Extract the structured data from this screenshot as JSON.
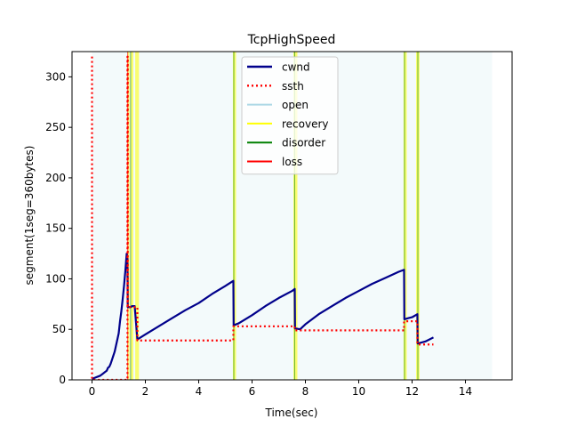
{
  "chart_data": {
    "type": "line",
    "title": "TcpHighSpeed",
    "xlabel": "Time(sec)",
    "ylabel": "segment(1seg=360bytes)",
    "xlim": [
      -0.75,
      15.75
    ],
    "ylim": [
      0,
      325
    ],
    "xticks": [
      0,
      2,
      4,
      6,
      8,
      10,
      12,
      14
    ],
    "yticks": [
      0,
      50,
      100,
      150,
      200,
      250,
      300
    ],
    "grid": false,
    "legend_position": "top-center",
    "colors": {
      "cwnd": "#00008b",
      "ssth": "#ff0000",
      "open": "#add8e6",
      "recovery": "#ffff00",
      "disorder": "#008000",
      "loss": "#ff0000",
      "open_background": "#f3fafb"
    },
    "series": [
      {
        "name": "cwnd",
        "style": "solid",
        "points": [
          [
            0.0,
            1
          ],
          [
            0.1,
            2
          ],
          [
            0.2,
            3
          ],
          [
            0.3,
            4
          ],
          [
            0.4,
            6
          ],
          [
            0.5,
            8
          ],
          [
            0.55,
            9
          ],
          [
            0.6,
            12
          ],
          [
            0.65,
            13
          ],
          [
            0.7,
            16
          ],
          [
            0.75,
            20
          ],
          [
            0.8,
            24
          ],
          [
            0.85,
            28
          ],
          [
            0.9,
            34
          ],
          [
            0.95,
            40
          ],
          [
            1.0,
            46
          ],
          [
            1.05,
            58
          ],
          [
            1.1,
            68
          ],
          [
            1.15,
            80
          ],
          [
            1.2,
            93
          ],
          [
            1.25,
            108
          ],
          [
            1.3,
            125
          ],
          [
            1.33,
            120
          ],
          [
            1.34,
            72
          ],
          [
            1.45,
            72
          ],
          [
            1.5,
            73
          ],
          [
            1.6,
            73
          ],
          [
            1.7,
            40
          ],
          [
            2.0,
            45
          ],
          [
            2.5,
            53
          ],
          [
            3.0,
            61
          ],
          [
            3.5,
            69
          ],
          [
            4.0,
            76
          ],
          [
            4.5,
            85
          ],
          [
            5.0,
            93
          ],
          [
            5.3,
            98
          ],
          [
            5.31,
            54
          ],
          [
            5.5,
            56
          ],
          [
            6.0,
            64
          ],
          [
            6.5,
            73
          ],
          [
            7.0,
            81
          ],
          [
            7.5,
            88
          ],
          [
            7.6,
            90
          ],
          [
            7.61,
            51
          ],
          [
            7.8,
            50
          ],
          [
            8.0,
            55
          ],
          [
            8.5,
            65
          ],
          [
            9.0,
            73
          ],
          [
            9.5,
            81
          ],
          [
            10.0,
            88
          ],
          [
            10.5,
            95
          ],
          [
            11.0,
            101
          ],
          [
            11.5,
            107
          ],
          [
            11.7,
            109
          ],
          [
            11.71,
            60
          ],
          [
            11.85,
            61
          ],
          [
            12.0,
            62
          ],
          [
            12.2,
            65
          ],
          [
            12.21,
            36
          ],
          [
            12.5,
            38
          ],
          [
            12.8,
            42
          ]
        ]
      },
      {
        "name": "ssth",
        "style": "dotted",
        "points": [
          [
            0.0,
            320
          ],
          [
            0.0,
            0
          ],
          [
            1.33,
            0
          ],
          [
            1.33,
            320
          ],
          [
            1.34,
            320
          ],
          [
            1.34,
            72
          ],
          [
            1.7,
            72
          ],
          [
            1.7,
            39
          ],
          [
            5.3,
            39
          ],
          [
            5.3,
            53
          ],
          [
            7.6,
            53
          ],
          [
            7.6,
            49
          ],
          [
            11.7,
            49
          ],
          [
            11.7,
            58
          ],
          [
            12.2,
            58
          ],
          [
            12.2,
            35
          ],
          [
            12.8,
            35
          ]
        ]
      }
    ],
    "state_bands": [
      {
        "state": "open",
        "x": [
          0.0,
          15.0
        ]
      },
      {
        "state": "recovery",
        "x": [
          1.33,
          1.4
        ]
      },
      {
        "state": "recovery",
        "x": [
          1.45,
          1.55
        ]
      },
      {
        "state": "recovery",
        "x": [
          1.62,
          1.76
        ]
      },
      {
        "state": "disorder",
        "x": [
          1.43,
          1.45
        ]
      },
      {
        "state": "loss",
        "x": [
          1.32,
          1.34
        ]
      },
      {
        "state": "recovery",
        "x": [
          5.28,
          5.4
        ]
      },
      {
        "state": "disorder",
        "x": [
          5.3,
          5.32
        ]
      },
      {
        "state": "recovery",
        "x": [
          7.55,
          7.7
        ]
      },
      {
        "state": "disorder",
        "x": [
          7.58,
          7.6
        ]
      },
      {
        "state": "recovery",
        "x": [
          11.68,
          11.8
        ]
      },
      {
        "state": "disorder",
        "x": [
          11.7,
          11.72
        ]
      },
      {
        "state": "recovery",
        "x": [
          12.15,
          12.28
        ]
      },
      {
        "state": "disorder",
        "x": [
          12.2,
          12.22
        ]
      }
    ],
    "legend": [
      "cwnd",
      "ssth",
      "open",
      "recovery",
      "disorder",
      "loss"
    ]
  }
}
